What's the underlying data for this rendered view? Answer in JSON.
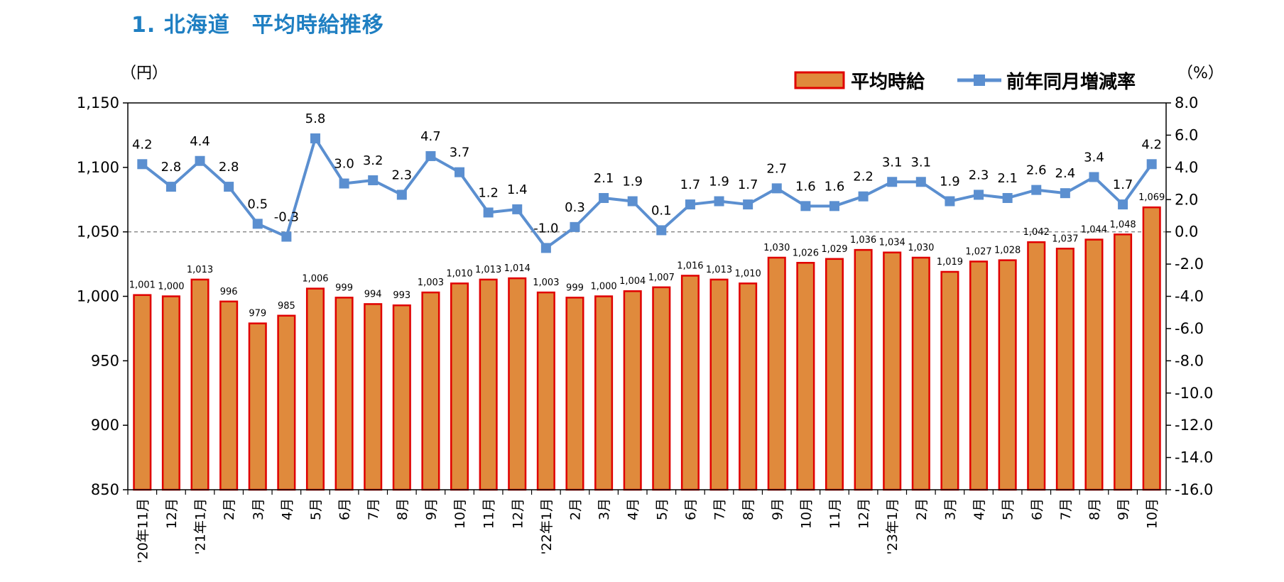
{
  "title": "1. 北海道　平均時給推移",
  "colors": {
    "bar_fill": "#E08A3C",
    "bar_stroke": "#E00000",
    "line": "#5B8FD0",
    "title": "#1F7FC2"
  },
  "chart_data": {
    "type": "bar+line",
    "categories": [
      "'20年11月",
      "12月",
      "'21年1月",
      "2月",
      "3月",
      "4月",
      "5月",
      "6月",
      "7月",
      "8月",
      "9月",
      "10月",
      "11月",
      "12月",
      "'22年1月",
      "2月",
      "3月",
      "4月",
      "5月",
      "6月",
      "7月",
      "8月",
      "9月",
      "10月",
      "11月",
      "12月",
      "'23年1月",
      "2月",
      "3月",
      "4月",
      "5月",
      "6月",
      "7月",
      "8月",
      "9月",
      "10月"
    ],
    "series": [
      {
        "name": "平均時給",
        "type": "bar",
        "axis": "left",
        "values": [
          1001,
          1000,
          1013,
          996,
          979,
          985,
          1006,
          999,
          994,
          993,
          1003,
          1010,
          1013,
          1014,
          1003,
          999,
          1000,
          1004,
          1007,
          1016,
          1013,
          1010,
          1030,
          1026,
          1029,
          1036,
          1034,
          1030,
          1019,
          1027,
          1028,
          1042,
          1037,
          1044,
          1048,
          1069
        ],
        "labels": [
          "1,001",
          "1,000",
          "1,013",
          "996",
          "979",
          "985",
          "1,006",
          "999",
          "994",
          "993",
          "1,003",
          "1,010",
          "1,013",
          "1,014",
          "1,003",
          "999",
          "1,000",
          "1,004",
          "1,007",
          "1,016",
          "1,013",
          "1,010",
          "1,030",
          "1,026",
          "1,029",
          "1,036",
          "1,034",
          "1,030",
          "1,019",
          "1,027",
          "1,028",
          "1,042",
          "1,037",
          "1,044",
          "1,048",
          "1,069"
        ]
      },
      {
        "name": "前年同月増減率",
        "type": "line",
        "axis": "right",
        "values": [
          4.2,
          2.8,
          4.4,
          2.8,
          0.5,
          -0.3,
          5.8,
          3.0,
          3.2,
          2.3,
          4.7,
          3.7,
          1.2,
          1.4,
          -1.0,
          0.3,
          2.1,
          1.9,
          0.1,
          1.7,
          1.9,
          1.7,
          2.7,
          1.6,
          1.6,
          2.2,
          3.1,
          3.1,
          1.9,
          2.3,
          2.1,
          2.6,
          2.4,
          3.4,
          1.7,
          4.2
        ],
        "labels": [
          "4.2",
          "2.8",
          "4.4",
          "2.8",
          "0.5",
          "-0.3",
          "5.8",
          "3.0",
          "3.2",
          "2.3",
          "4.7",
          "3.7",
          "1.2",
          "1.4",
          "-1.0",
          "0.3",
          "2.1",
          "1.9",
          "0.1",
          "1.7",
          "1.9",
          "1.7",
          "2.7",
          "1.6",
          "1.6",
          "2.2",
          "3.1",
          "3.1",
          "1.9",
          "2.3",
          "2.1",
          "2.6",
          "2.4",
          "3.4",
          "1.7",
          "4.2"
        ]
      }
    ],
    "left_axis": {
      "label": "（円）",
      "min": 850,
      "max": 1150,
      "ticks": [
        850,
        900,
        950,
        1000,
        1050,
        1100,
        1150
      ],
      "tick_labels": [
        "850",
        "900",
        "950",
        "1,000",
        "1,050",
        "1,100",
        "1,150"
      ]
    },
    "right_axis": {
      "label": "（%）",
      "min": -16,
      "max": 8,
      "ticks": [
        -16,
        -14,
        -12,
        -10,
        -8,
        -6,
        -4,
        -2,
        0,
        2,
        4,
        6,
        8
      ],
      "tick_labels": [
        "-16.0",
        "-14.0",
        "-12.0",
        "-10.0",
        "-8.0",
        "-6.0",
        "-4.0",
        "-2.0",
        "0.0",
        "2.0",
        "4.0",
        "6.0",
        "8.0"
      ]
    },
    "zero_line": "dashed",
    "legend": {
      "position": "top-right",
      "entries": [
        "平均時給",
        "前年同月増減率"
      ]
    }
  }
}
